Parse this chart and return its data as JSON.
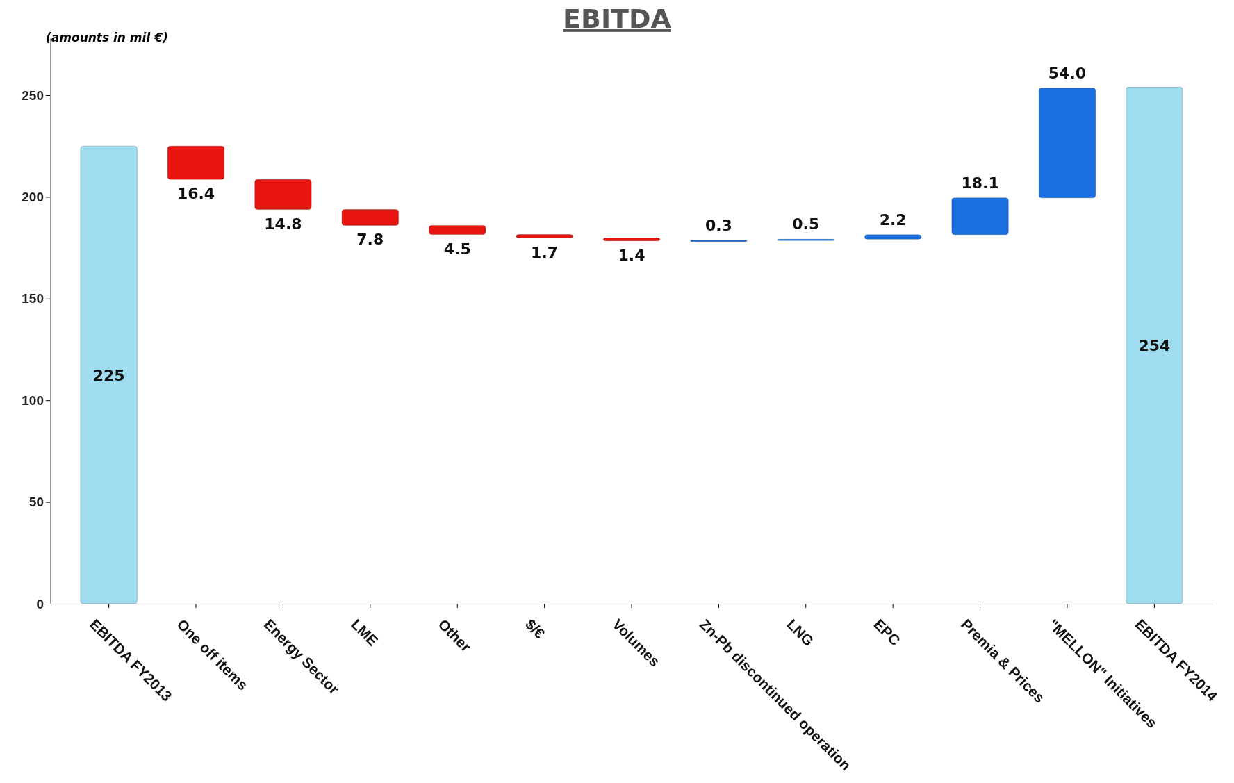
{
  "chart_data": {
    "type": "bar",
    "title": "EBITDA",
    "annotations": [
      "(amounts in mil €)"
    ],
    "categories": [
      "EBITDA FY2013",
      "One off items",
      "Energy Sector",
      "LME",
      "Other",
      "$/€",
      "Volumes",
      "Zn-Pb discontinued operation",
      "LNG",
      "EPC",
      "Premia & Prices",
      "\"MELLON\" Initiatives",
      "EBITDA FY2014"
    ],
    "values": [
      225,
      -16.4,
      -14.8,
      -7.8,
      -4.5,
      -1.7,
      -1.4,
      0.3,
      0.5,
      2.2,
      18.1,
      54.0,
      254
    ],
    "base": [
      0,
      225,
      208.6,
      193.8,
      186.0,
      181.5,
      179.8,
      178.4,
      178.7,
      179.2,
      181.4,
      199.5,
      0
    ],
    "colors": [
      "#9fdcef",
      "#e8140f",
      "#e8140f",
      "#e8140f",
      "#e8140f",
      "#e8140f",
      "#e8140f",
      "#1a6fe0",
      "#1a6fe0",
      "#1a6fe0",
      "#1a6fe0",
      "#1a6fe0",
      "#9fdcef"
    ],
    "value_labels": [
      "225",
      "16.4",
      "14.8",
      "7.8",
      "4.5",
      "1.7",
      "1.4",
      "0.3",
      "0.5",
      "2.2",
      "18.1",
      "54.0",
      "254"
    ],
    "ylim": [
      0,
      278
    ],
    "yticks": [
      0,
      50,
      100,
      150,
      200,
      250
    ],
    "grid": false
  }
}
